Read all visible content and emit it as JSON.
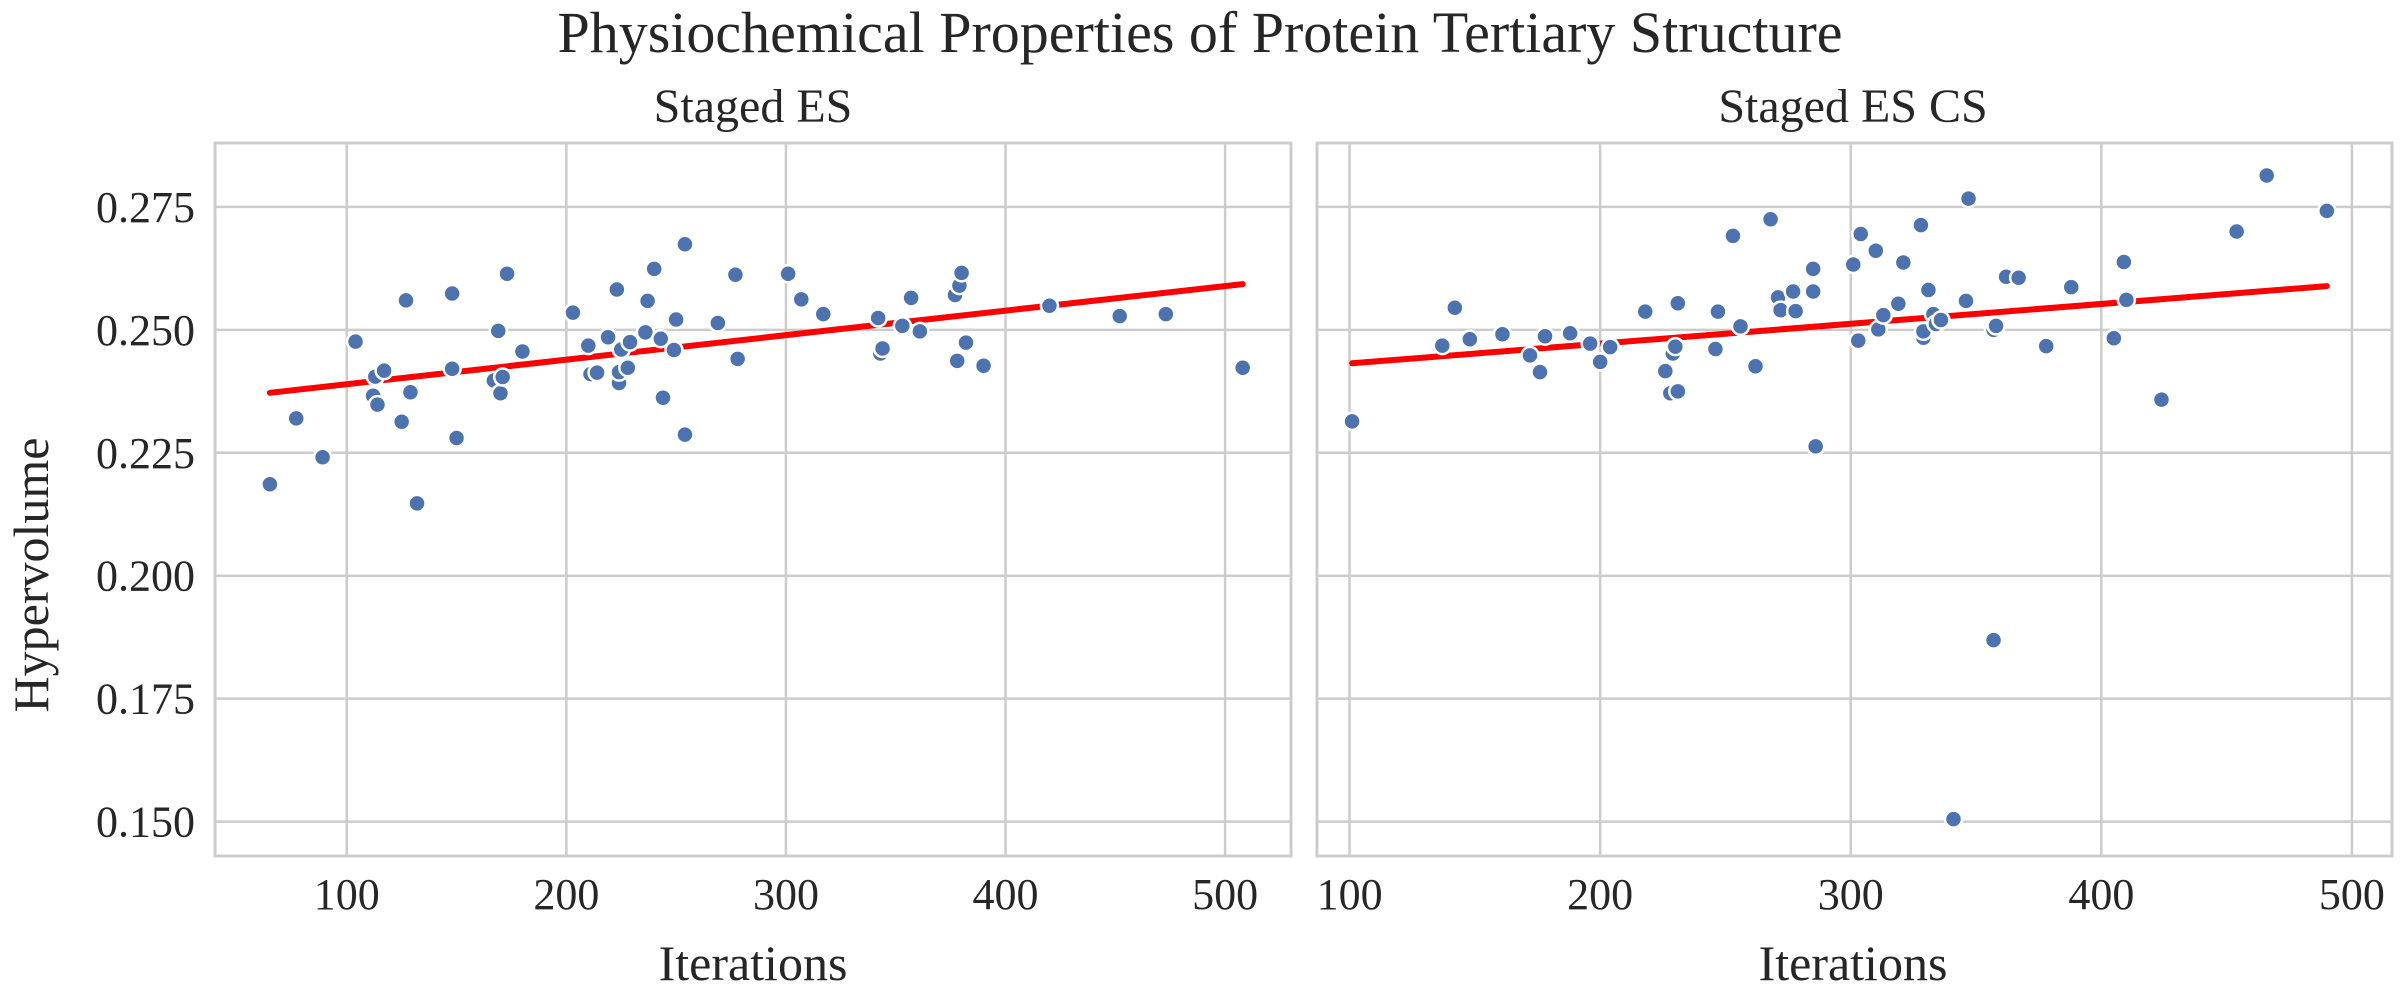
{
  "title": "Physiochemical Properties of Protein Tertiary Structure",
  "shared_ylabel": "Hypervolume",
  "colors": {
    "points": "#4c72b0",
    "fit_line": "#ff0000",
    "grid": "#cccccc"
  },
  "chart_data": [
    {
      "type": "scatter",
      "subtitle": "Staged ES",
      "xlabel": "Iterations",
      "ylabel": "Hypervolume",
      "xlim": [
        40,
        530
      ],
      "ylim": [
        0.143,
        0.288
      ],
      "xticks": [
        100,
        200,
        300,
        400,
        500
      ],
      "yticks": [
        0.15,
        0.175,
        0.2,
        0.225,
        0.25,
        0.275
      ],
      "ytick_labels": [
        "0.150",
        "0.175",
        "0.200",
        "0.225",
        "0.250",
        "0.275"
      ],
      "grid": true,
      "trendline": {
        "x": [
          65,
          508
        ],
        "y": [
          0.2372,
          0.2593
        ]
      },
      "points": [
        [
          65,
          0.2186
        ],
        [
          77,
          0.232
        ],
        [
          89,
          0.2241
        ],
        [
          104,
          0.2476
        ],
        [
          112,
          0.2366
        ],
        [
          113,
          0.2405
        ],
        [
          114,
          0.2348
        ],
        [
          117,
          0.2417
        ],
        [
          125,
          0.2313
        ],
        [
          127,
          0.256
        ],
        [
          129,
          0.2373
        ],
        [
          132,
          0.2147
        ],
        [
          148,
          0.2574
        ],
        [
          148,
          0.2421
        ],
        [
          150,
          0.228
        ],
        [
          167,
          0.2397
        ],
        [
          169,
          0.2498
        ],
        [
          170,
          0.2371
        ],
        [
          171,
          0.2404
        ],
        [
          173,
          0.2614
        ],
        [
          180,
          0.2456
        ],
        [
          203,
          0.2535
        ],
        [
          210,
          0.2468
        ],
        [
          211,
          0.241
        ],
        [
          214,
          0.2413
        ],
        [
          219,
          0.2485
        ],
        [
          223,
          0.2582
        ],
        [
          224,
          0.2392
        ],
        [
          224,
          0.2414
        ],
        [
          225,
          0.246
        ],
        [
          228,
          0.2423
        ],
        [
          229,
          0.2475
        ],
        [
          236,
          0.2495
        ],
        [
          237,
          0.2559
        ],
        [
          240,
          0.2624
        ],
        [
          243,
          0.2482
        ],
        [
          244,
          0.2362
        ],
        [
          249,
          0.2459
        ],
        [
          250,
          0.2521
        ],
        [
          254,
          0.2674
        ],
        [
          254,
          0.2287
        ],
        [
          269,
          0.2514
        ],
        [
          277,
          0.2612
        ],
        [
          278,
          0.2441
        ],
        [
          301,
          0.2614
        ],
        [
          307,
          0.2562
        ],
        [
          317,
          0.2532
        ],
        [
          342,
          0.2524
        ],
        [
          343,
          0.2452
        ],
        [
          344,
          0.2462
        ],
        [
          353,
          0.2508
        ],
        [
          357,
          0.2565
        ],
        [
          361,
          0.2497
        ],
        [
          377,
          0.2571
        ],
        [
          378,
          0.2437
        ],
        [
          379,
          0.259
        ],
        [
          380,
          0.2616
        ],
        [
          382,
          0.2474
        ],
        [
          390,
          0.2427
        ],
        [
          420,
          0.2549
        ],
        [
          452,
          0.2528
        ],
        [
          473,
          0.2532
        ],
        [
          508,
          0.2423
        ]
      ]
    },
    {
      "type": "scatter",
      "subtitle": "Staged ES CS",
      "xlabel": "Iterations",
      "ylabel": "",
      "xlim": [
        87,
        516
      ],
      "ylim": [
        0.143,
        0.288
      ],
      "xticks": [
        100,
        200,
        300,
        400,
        500
      ],
      "yticks": [
        0.15,
        0.175,
        0.2,
        0.225,
        0.25,
        0.275
      ],
      "ytick_labels": [
        "",
        "",
        "",
        "",
        "",
        ""
      ],
      "grid": true,
      "trendline": {
        "x": [
          101,
          490
        ],
        "y": [
          0.2432,
          0.2589
        ]
      },
      "points": [
        [
          101,
          0.2314
        ],
        [
          137,
          0.2468
        ],
        [
          142,
          0.2545
        ],
        [
          148,
          0.2481
        ],
        [
          161,
          0.2491
        ],
        [
          172,
          0.2448
        ],
        [
          176,
          0.2414
        ],
        [
          178,
          0.2487
        ],
        [
          188,
          0.2493
        ],
        [
          196,
          0.2472
        ],
        [
          200,
          0.2435
        ],
        [
          204,
          0.2465
        ],
        [
          218,
          0.2537
        ],
        [
          226,
          0.2416
        ],
        [
          228,
          0.2371
        ],
        [
          229,
          0.2452
        ],
        [
          230,
          0.2466
        ],
        [
          231,
          0.2554
        ],
        [
          231,
          0.2375
        ],
        [
          246,
          0.2461
        ],
        [
          247,
          0.2537
        ],
        [
          253,
          0.2691
        ],
        [
          256,
          0.2507
        ],
        [
          262,
          0.2426
        ],
        [
          268,
          0.2725
        ],
        [
          271,
          0.2566
        ],
        [
          272,
          0.254
        ],
        [
          277,
          0.2578
        ],
        [
          278,
          0.2538
        ],
        [
          285,
          0.2624
        ],
        [
          285,
          0.2578
        ],
        [
          286,
          0.2263
        ],
        [
          301,
          0.2633
        ],
        [
          303,
          0.2478
        ],
        [
          304,
          0.2695
        ],
        [
          310,
          0.2661
        ],
        [
          311,
          0.2501
        ],
        [
          313,
          0.253
        ],
        [
          319,
          0.2553
        ],
        [
          321,
          0.2637
        ],
        [
          328,
          0.2713
        ],
        [
          329,
          0.2484
        ],
        [
          329,
          0.2497
        ],
        [
          331,
          0.2581
        ],
        [
          333,
          0.2532
        ],
        [
          334,
          0.2512
        ],
        [
          336,
          0.252
        ],
        [
          341,
          0.1505
        ],
        [
          346,
          0.2559
        ],
        [
          347,
          0.2767
        ],
        [
          357,
          0.1869
        ],
        [
          357,
          0.25
        ],
        [
          358,
          0.2508
        ],
        [
          362,
          0.2608
        ],
        [
          367,
          0.2606
        ],
        [
          378,
          0.2467
        ],
        [
          388,
          0.2587
        ],
        [
          405,
          0.2483
        ],
        [
          409,
          0.2638
        ],
        [
          410,
          0.2561
        ],
        [
          424,
          0.2358
        ],
        [
          454,
          0.27
        ],
        [
          466,
          0.2814
        ],
        [
          490,
          0.2742
        ]
      ]
    }
  ]
}
